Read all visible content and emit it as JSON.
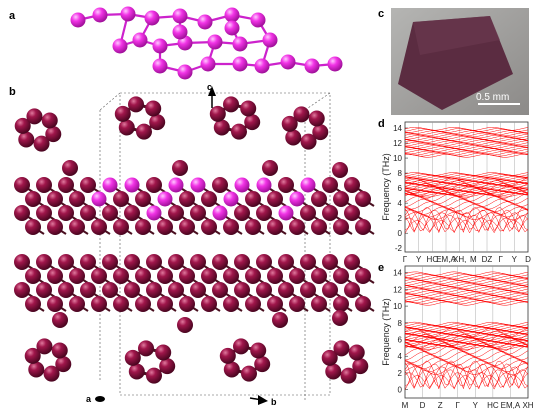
{
  "labels": {
    "a": "a",
    "b": "b",
    "c": "c",
    "d": "d",
    "e": "e"
  },
  "axes": {
    "a": "a",
    "b": "b",
    "c": "c"
  },
  "photo": {
    "scale_bar": "0.5  mm"
  },
  "colors": {
    "atom_dark": "#8a0f3c",
    "atom_highlight": "#ee22dd",
    "band": "#ff0000",
    "photo_bg": "#9a9a98",
    "crystal": "#5a2c40"
  },
  "chart_data": [
    {
      "type": "line",
      "panel": "d",
      "ylabel": "Frequency (THz)",
      "yticks": [
        "0",
        "2",
        "4",
        "6",
        "8",
        "10",
        "12",
        "14"
      ],
      "ylim": [
        -2.5,
        14.8
      ],
      "extra_tick": "-2",
      "xticks": [
        "Γ",
        "Y",
        "HC",
        "EM,A",
        "XH,",
        "M",
        "DZ",
        "Γ",
        "Y",
        "D"
      ],
      "series": [
        {
          "values": []
        }
      ]
    },
    {
      "type": "line",
      "panel": "e",
      "ylabel": "Frequency (THz)",
      "yticks": [
        "0",
        "2",
        "4",
        "6",
        "8",
        "10",
        "12",
        "14"
      ],
      "ylim": [
        -1,
        14.8
      ],
      "xticks": [
        "M",
        "D",
        "Z",
        "Γ",
        "Y",
        "HC",
        "EM,A",
        "XH"
      ],
      "series": [
        {
          "values": []
        }
      ]
    }
  ]
}
